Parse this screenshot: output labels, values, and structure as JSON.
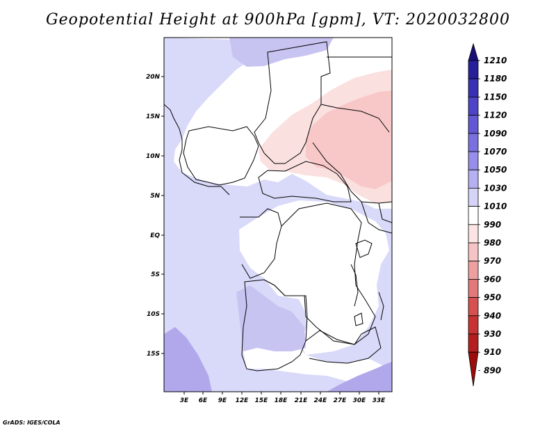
{
  "title": "Geopotential Height at 900hPa [gpm], VT: 2020032800",
  "credit": "GrADS: IGES/COLA",
  "map": {
    "lat_ticks": [
      "20N",
      "15N",
      "10N",
      "5N",
      "EQ",
      "5S",
      "10S",
      "15S"
    ],
    "lon_ticks": [
      "3E",
      "6E",
      "9E",
      "12E",
      "15E",
      "18E",
      "21E",
      "24E",
      "27E",
      "30E",
      "33E"
    ],
    "colors": {
      "background": "#d9d9f9",
      "near_neutral": "#ffffff",
      "warm_light": "#fbe0e0",
      "warm_mid": "#f8c8c8",
      "cool_mid": "#c8c4f2",
      "cool_deep": "#b1a8ec",
      "border": "#000000"
    }
  },
  "colorbar": {
    "labels": [
      "1210",
      "1180",
      "1150",
      "1120",
      "1090",
      "1070",
      "1050",
      "1030",
      "1010",
      "990",
      "980",
      "970",
      "960",
      "950",
      "940",
      "930",
      "910",
      "890"
    ],
    "colors": [
      "#1a0f7a",
      "#28209a",
      "#3a30b4",
      "#4e44c8",
      "#6258d6",
      "#7a70e0",
      "#968eea",
      "#b6b0f2",
      "#d6d3f8",
      "#ffffff",
      "#fde4e4",
      "#f6c4c4",
      "#eea0a0",
      "#e27878",
      "#d65050",
      "#c83232",
      "#b41e1e",
      "#9c0c0c"
    ]
  }
}
